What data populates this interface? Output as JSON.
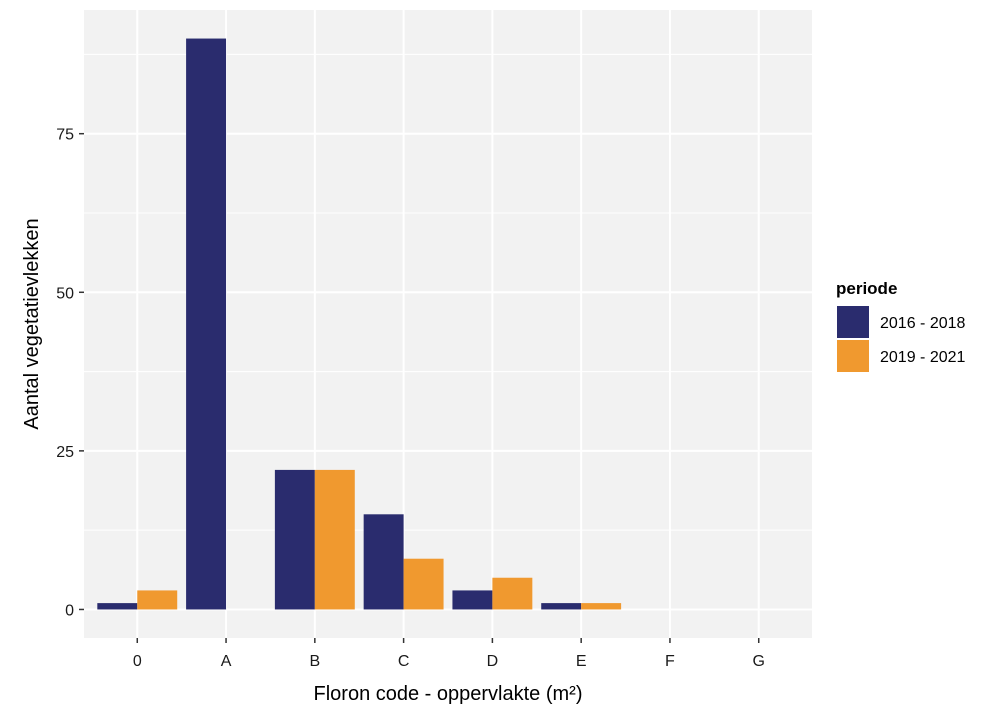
{
  "chart_data": {
    "type": "bar",
    "categories": [
      "0",
      "A",
      "B",
      "C",
      "D",
      "E",
      "F",
      "G"
    ],
    "series": [
      {
        "name": "2016 - 2018",
        "color": "#2a2c6e",
        "values": [
          1,
          90,
          22,
          15,
          3,
          1,
          0,
          0
        ]
      },
      {
        "name": "2019 - 2021",
        "color": "#f0992f",
        "values": [
          3,
          0,
          22,
          8,
          5,
          1,
          0,
          0
        ]
      }
    ],
    "xlabel": "Floron code - oppervlakte (m²)",
    "ylabel": "Aantal vegetatievlekken",
    "ylim": [
      -4.5,
      94.5
    ],
    "yticks": [
      0,
      25,
      50,
      75
    ],
    "grid": true,
    "panel_color": "#f2f2f2",
    "legend": {
      "title": "periode",
      "position": "right"
    }
  }
}
